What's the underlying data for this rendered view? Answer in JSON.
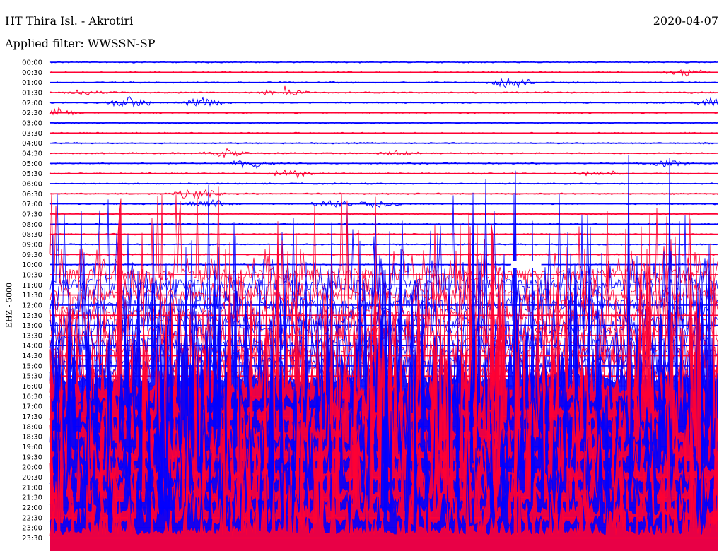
{
  "header": {
    "station": "HT Thira Isl. - Akrotiri",
    "filter": "Applied filter: WWSSN-SP",
    "date": "2020-04-07"
  },
  "chart_data": {
    "type": "line",
    "channel": "EHZ - 5000",
    "row_times": [
      "00:00",
      "00:30",
      "01:00",
      "01:30",
      "02:00",
      "02:30",
      "03:00",
      "03:30",
      "04:00",
      "04:30",
      "05:00",
      "05:30",
      "06:00",
      "06:30",
      "07:00",
      "07:30",
      "08:00",
      "08:30",
      "09:00",
      "09:30",
      "10:00",
      "10:30",
      "11:00",
      "11:30",
      "12:00",
      "12:30",
      "13:00",
      "13:30",
      "14:00",
      "14:30",
      "15:00",
      "15:30",
      "16:00",
      "16:30",
      "17:00",
      "17:30",
      "18:00",
      "18:30",
      "19:00",
      "19:30",
      "20:00",
      "20:30",
      "21:00",
      "21:30",
      "22:00",
      "22:30",
      "23:00",
      "23:30"
    ],
    "trace_colors": [
      "#0000ff",
      "#ff0033"
    ],
    "events": [
      {
        "row": 1,
        "x": 0.95,
        "amp": 5
      },
      {
        "row": 2,
        "x": 0.69,
        "amp": 7
      },
      {
        "row": 3,
        "x": 0.35,
        "amp": 7
      },
      {
        "row": 3,
        "x": 0.05,
        "amp": 3
      },
      {
        "row": 4,
        "x": 0.12,
        "amp": 7
      },
      {
        "row": 4,
        "x": 0.23,
        "amp": 5
      },
      {
        "row": 4,
        "x": 0.995,
        "amp": 5
      },
      {
        "row": 5,
        "x": 0.005,
        "amp": 6
      },
      {
        "row": 9,
        "x": 0.26,
        "amp": 5
      },
      {
        "row": 9,
        "x": 0.52,
        "amp": 3
      },
      {
        "row": 10,
        "x": 0.3,
        "amp": 6
      },
      {
        "row": 10,
        "x": 0.92,
        "amp": 4
      },
      {
        "row": 11,
        "x": 0.36,
        "amp": 5
      },
      {
        "row": 11,
        "x": 0.82,
        "amp": 4
      },
      {
        "row": 13,
        "x": 0.22,
        "amp": 7
      },
      {
        "row": 14,
        "x": 0.24,
        "amp": 5
      },
      {
        "row": 14,
        "x": 0.42,
        "amp": 6
      },
      {
        "row": 14,
        "x": 0.49,
        "amp": 5
      },
      {
        "row": 25,
        "x": 0.23,
        "amp": 4
      },
      {
        "row": 26,
        "x": 0.55,
        "amp": 4
      },
      {
        "row": 29,
        "x": 0.95,
        "amp": 6
      }
    ],
    "data_gap": {
      "row": 20,
      "x_start": 0.69,
      "x_end": 0.735
    },
    "noise_onset_row": 21,
    "saturation_start_row": 32
  }
}
